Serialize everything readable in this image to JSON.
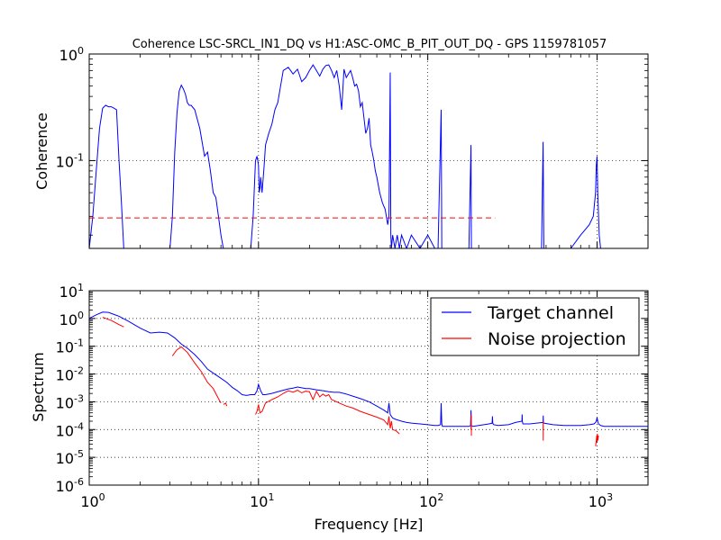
{
  "chart_data": [
    {
      "type": "line",
      "title": "Coherence LSC-SRCL_IN1_DQ vs H1:ASC-OMC_B_PIT_OUT_DQ - GPS 1159781057",
      "xlabel": "",
      "ylabel": "Coherence",
      "xscale": "log",
      "yscale": "log",
      "xlim": [
        1,
        2000
      ],
      "ylim": [
        0.015,
        1
      ],
      "grid": true,
      "ytick_labels": [
        {
          "base": "10",
          "exp": "0",
          "value": 1
        },
        {
          "base": "10",
          "exp": "-1",
          "value": 0.1
        }
      ],
      "series": [
        {
          "color": "#0000ff",
          "x": [
            1.0,
            1.05,
            1.1,
            1.15,
            1.2,
            1.25,
            1.3,
            1.35,
            1.4,
            1.45,
            1.5,
            1.55,
            1.6,
            1.65,
            1.8,
            2.0,
            2.2,
            2.5,
            2.8,
            3.0,
            3.1,
            3.2,
            3.3,
            3.4,
            3.5,
            3.6,
            3.7,
            3.8,
            3.9,
            4.0,
            4.2,
            4.5,
            4.8,
            5.0,
            5.2,
            5.4,
            5.6,
            5.8,
            6.0,
            6.2,
            6.4,
            6.6,
            6.8,
            7.0,
            7.5,
            8.0,
            8.5,
            9.0,
            9.3,
            9.6,
            9.8,
            10.0,
            10.1,
            10.2,
            10.3,
            10.5,
            10.8,
            11.0,
            11.5,
            12.0,
            12.5,
            13.0,
            13.5,
            14.0,
            15.0,
            16.0,
            17.0,
            18.0,
            19.0,
            20.0,
            21.0,
            22.0,
            23.0,
            24.0,
            25.0,
            26.0,
            27.0,
            28.0,
            29.0,
            30.0,
            31.0,
            32.0,
            33.0,
            34.0,
            35.0,
            36.0,
            37.0,
            38.0,
            39.0,
            40.0,
            41.0,
            42.0,
            43.0,
            44.0,
            45.0,
            46.0,
            47.0,
            48.0,
            49.0,
            50.0,
            52.0,
            54.0,
            56.0,
            58.0,
            59.0,
            60.0,
            60.5,
            61.0,
            62.0,
            64.0,
            66.0,
            68.0,
            70.0,
            75.0,
            80.0,
            90.0,
            100.0,
            110.0,
            115.0,
            120.0,
            121.0,
            122.0,
            125.0,
            140.0,
            160.0,
            175.0,
            180.0,
            181.0,
            185.0,
            200.0,
            240.0,
            300.0,
            360.0,
            420.0,
            470.0,
            480.0,
            485.0,
            500.0,
            600.0,
            700.0,
            800.0,
            900.0,
            950.0,
            980.0,
            990.0,
            1000.0,
            1010.0,
            1030.0,
            1050.0,
            1100.0,
            1200.0
          ],
          "y": [
            0.015,
            0.03,
            0.08,
            0.2,
            0.31,
            0.33,
            0.32,
            0.32,
            0.31,
            0.3,
            0.1,
            0.04,
            0.015,
            0.015,
            0.015,
            0.015,
            0.015,
            0.015,
            0.015,
            0.015,
            0.03,
            0.12,
            0.28,
            0.45,
            0.51,
            0.47,
            0.42,
            0.35,
            0.33,
            0.33,
            0.3,
            0.2,
            0.11,
            0.12,
            0.08,
            0.05,
            0.045,
            0.03,
            0.02,
            0.015,
            0.015,
            0.015,
            0.015,
            0.015,
            0.015,
            0.015,
            0.015,
            0.015,
            0.03,
            0.1,
            0.11,
            0.09,
            0.05,
            0.055,
            0.07,
            0.05,
            0.09,
            0.14,
            0.18,
            0.22,
            0.3,
            0.35,
            0.5,
            0.7,
            0.75,
            0.65,
            0.72,
            0.55,
            0.6,
            0.7,
            0.79,
            0.7,
            0.62,
            0.72,
            0.78,
            0.79,
            0.7,
            0.6,
            0.7,
            0.5,
            0.3,
            0.72,
            0.6,
            0.65,
            0.7,
            0.6,
            0.5,
            0.52,
            0.45,
            0.32,
            0.35,
            0.25,
            0.18,
            0.2,
            0.25,
            0.14,
            0.12,
            0.1,
            0.08,
            0.07,
            0.05,
            0.04,
            0.035,
            0.025,
            0.03,
            0.67,
            0.02,
            0.015,
            0.02,
            0.015,
            0.02,
            0.015,
            0.02,
            0.015,
            0.02,
            0.015,
            0.02,
            0.015,
            0.015,
            0.3,
            0.015,
            0.015,
            0.015,
            0.015,
            0.015,
            0.015,
            0.14,
            0.015,
            0.015,
            0.015,
            0.015,
            0.015,
            0.015,
            0.015,
            0.015,
            0.15,
            0.015,
            0.015,
            0.015,
            0.015,
            0.02,
            0.025,
            0.03,
            0.05,
            0.09,
            0.11,
            0.05,
            0.02,
            0.015,
            0.015,
            0.015
          ]
        },
        {
          "color": "#ff0000",
          "dashed": true,
          "x": [
            1,
            250
          ],
          "y": [
            0.029,
            0.029
          ]
        }
      ]
    },
    {
      "type": "line",
      "title": "",
      "xlabel": "Frequency [Hz]",
      "ylabel": "Spectrum",
      "xscale": "log",
      "yscale": "log",
      "xlim": [
        1,
        2000
      ],
      "ylim": [
        1e-06,
        10
      ],
      "grid": true,
      "legend_position": "top-right",
      "xtick_labels": [
        {
          "base": "10",
          "exp": "0",
          "value": 1
        },
        {
          "base": "10",
          "exp": "1",
          "value": 10
        },
        {
          "base": "10",
          "exp": "2",
          "value": 100
        },
        {
          "base": "10",
          "exp": "3",
          "value": 1000
        }
      ],
      "ytick_labels": [
        {
          "base": "10",
          "exp": "1",
          "value": 10
        },
        {
          "base": "10",
          "exp": "0",
          "value": 1
        },
        {
          "base": "10",
          "exp": "-1",
          "value": 0.1
        },
        {
          "base": "10",
          "exp": "-2",
          "value": 0.01
        },
        {
          "base": "10",
          "exp": "-3",
          "value": 0.001
        },
        {
          "base": "10",
          "exp": "-4",
          "value": 0.0001
        },
        {
          "base": "10",
          "exp": "-5",
          "value": 1e-05
        },
        {
          "base": "10",
          "exp": "-6",
          "value": 1e-06
        }
      ],
      "series": [
        {
          "name": "Target channel",
          "color": "#0000ff",
          "x": [
            1.0,
            1.1,
            1.2,
            1.3,
            1.5,
            1.7,
            2.0,
            2.3,
            2.6,
            2.9,
            3.2,
            3.5,
            3.8,
            4.2,
            4.6,
            5.0,
            5.5,
            6.0,
            6.5,
            7.0,
            7.5,
            8.0,
            8.5,
            9.0,
            9.5,
            9.8,
            10.0,
            10.3,
            10.6,
            11.0,
            12.0,
            13.0,
            14.0,
            15.0,
            16.0,
            17.0,
            18.0,
            19.0,
            20.0,
            22.0,
            24.0,
            26.0,
            28.0,
            30.0,
            33.0,
            36.0,
            40.0,
            45.0,
            50.0,
            55.0,
            58.0,
            59.0,
            60.0,
            61.0,
            62.0,
            65.0,
            70.0,
            75.0,
            80.0,
            90.0,
            100.0,
            110.0,
            115.0,
            119.0,
            120.0,
            121.0,
            122.0,
            125.0,
            140.0,
            160.0,
            175.0,
            179.0,
            180.0,
            181.0,
            185.0,
            200.0,
            230.0,
            240.0,
            241.0,
            242.0,
            245.0,
            260.0,
            300.0,
            330.0,
            360.0,
            361.0,
            362.0,
            365.0,
            400.0,
            440.0,
            480.0,
            481.0,
            482.0,
            485.0,
            550.0,
            640.0,
            700.0,
            800.0,
            900.0,
            960.0,
            980.0,
            990.0,
            1000.0,
            1010.0,
            1020.0,
            1050.0,
            1100.0,
            1200.0,
            1400.0,
            1600.0,
            1800.0,
            2000.0
          ],
          "y": [
            1.0,
            1.35,
            1.7,
            1.65,
            1.2,
            0.8,
            0.45,
            0.3,
            0.32,
            0.3,
            0.2,
            0.12,
            0.085,
            0.05,
            0.028,
            0.015,
            0.01,
            0.007,
            0.005,
            0.0033,
            0.0025,
            0.0018,
            0.0017,
            0.0018,
            0.0018,
            0.0025,
            0.0042,
            0.0025,
            0.0018,
            0.0018,
            0.002,
            0.0023,
            0.0026,
            0.0029,
            0.0031,
            0.0034,
            0.0032,
            0.003,
            0.003,
            0.0027,
            0.0025,
            0.0023,
            0.0022,
            0.0022,
            0.0019,
            0.0016,
            0.0013,
            0.001,
            0.0007,
            0.0005,
            0.0004,
            0.0009,
            0.00035,
            0.0003,
            0.00026,
            0.00023,
            0.0002,
            0.00018,
            0.00017,
            0.00016,
            0.00015,
            0.00014,
            0.00014,
            0.00015,
            0.0009,
            0.00016,
            0.00013,
            0.00013,
            0.00013,
            0.00013,
            0.00013,
            0.00014,
            0.0005,
            0.00014,
            0.00013,
            0.00014,
            0.00016,
            0.00017,
            0.0003,
            0.00017,
            0.00015,
            0.00014,
            0.00015,
            0.00018,
            0.0002,
            0.00035,
            0.0002,
            0.00016,
            0.00016,
            0.00017,
            0.00018,
            0.00032,
            0.00018,
            0.00017,
            0.00015,
            0.00014,
            0.00014,
            0.00014,
            0.00015,
            0.00016,
            0.00018,
            0.0002,
            0.00027,
            0.0002,
            0.00016,
            0.00014,
            0.00013,
            0.00013,
            0.00013,
            0.00013,
            0.00013,
            0.00013
          ]
        },
        {
          "name": "Noise projection",
          "color": "#ff0000",
          "segments": [
            {
              "x": [
                1.2,
                1.35,
                1.5,
                1.6
              ],
              "y": [
                1.1,
                0.85,
                0.6,
                0.5
              ]
            },
            {
              "x": [
                3.1,
                3.3,
                3.5,
                3.8,
                4.2,
                4.6,
                5.0,
                5.4,
                5.8,
                6.0
              ],
              "y": [
                0.045,
                0.075,
                0.095,
                0.06,
                0.025,
                0.012,
                0.005,
                0.003,
                0.0013,
                0.0009
              ]
            },
            {
              "x": [
                6.2,
                6.4,
                6.5
              ],
              "y": [
                0.0008,
                0.0009,
                0.0007
              ]
            },
            {
              "x": [
                9.6,
                9.8,
                10.0,
                10.2,
                10.5,
                11.0,
                12.0,
                13.0,
                14.0,
                15.0,
                16.0,
                17.0,
                18.0,
                19.0,
                20.0,
                21.0,
                22.0,
                23.0,
                24.0,
                25.0,
                26.0,
                27.0,
                28.0,
                30.0,
                33.0,
                36.0,
                40.0,
                45.0,
                50.0,
                55.0,
                58.0,
                59.0,
                60.0,
                61.0,
                62.0,
                65.0,
                68.0
              ],
              "y": [
                0.00035,
                0.00045,
                0.0008,
                0.0004,
                0.00045,
                0.0009,
                0.0012,
                0.0015,
                0.002,
                0.0025,
                0.0022,
                0.0026,
                0.0021,
                0.0024,
                0.0023,
                0.0012,
                0.0024,
                0.0015,
                0.0019,
                0.0016,
                0.0018,
                0.0012,
                0.0011,
                0.0009,
                0.0007,
                0.0006,
                0.00045,
                0.00035,
                0.00028,
                0.00022,
                0.00015,
                0.0003,
                0.00011,
                0.0002,
                0.0001,
                9e-05,
                7e-05
              ]
            },
            {
              "x": [
                180.0,
                180.5,
                181.0
              ],
              "y": [
                0.0001,
                0.00035,
                6e-05
              ]
            },
            {
              "x": [
                480.0,
                480.5,
                481.0
              ],
              "y": [
                0.0001,
                0.0002,
                4e-05
              ]
            },
            {
              "x": [
                980.0,
                990.0,
                995.0,
                1000.0,
                1005.0,
                1010.0,
                1020.0
              ],
              "y": [
                2.5e-05,
                4e-05,
                6e-05,
                3.5e-05,
                7e-05,
                4e-05,
                6e-05
              ]
            }
          ]
        }
      ]
    }
  ]
}
